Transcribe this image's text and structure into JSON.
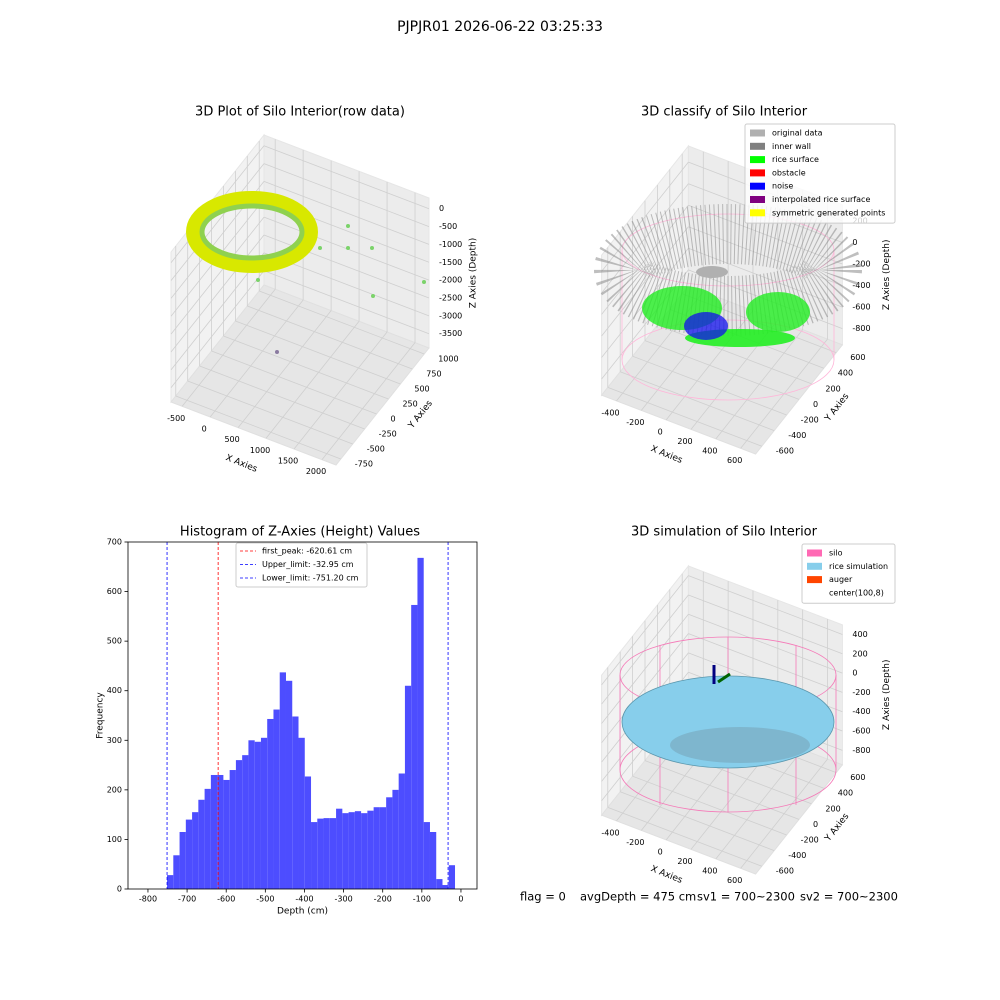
{
  "suptitle": "PJPJR01 2026-06-22 03:25:33",
  "footer": [
    "flag = 0",
    "avgDepth = 475 cm",
    "sv1 = 700~2300",
    "sv2 = 700~2300"
  ],
  "chart_data": [
    {
      "type": "scatter3d",
      "title": "3D Plot of Silo Interior(row data)",
      "xlabel": "X Axies",
      "ylabel": "Y Axies",
      "zlabel": "Z Axies (Depth)",
      "xlim": [
        -700,
        2250
      ],
      "ylim": [
        -850,
        1100
      ],
      "zlim": [
        -3900,
        300
      ],
      "xticks": [
        -500,
        0,
        500,
        1000,
        1500,
        2000
      ],
      "yticks": [
        -750,
        -500,
        -250,
        0,
        250,
        500,
        750,
        1000
      ],
      "zticks": [
        0,
        -500,
        -1000,
        -1500,
        -2000,
        -2500,
        -3000,
        -3500
      ]
    },
    {
      "type": "scatter3d",
      "title": "3D classify of Silo Interior",
      "xlabel": "X Axies",
      "ylabel": "Y Axies",
      "zlabel": "Z Axies (Depth)",
      "xlim": [
        -520,
        720
      ],
      "ylim": [
        -700,
        700
      ],
      "zlim": [
        -950,
        350
      ],
      "xticks": [
        -400,
        -200,
        0,
        200,
        400,
        600
      ],
      "yticks": [
        -600,
        -400,
        -200,
        0,
        200,
        400,
        600
      ],
      "zticks": [
        200,
        0,
        -200,
        -400,
        -600,
        -800
      ],
      "legend": [
        {
          "name": "original data",
          "color": "#b0b0b0"
        },
        {
          "name": "inner wall",
          "color": "#808080"
        },
        {
          "name": "rice surface",
          "color": "#00ff00"
        },
        {
          "name": "obstacle",
          "color": "#ff0000"
        },
        {
          "name": "noise",
          "color": "#0000ff"
        },
        {
          "name": "interpolated rice surface",
          "color": "#800080"
        },
        {
          "name": "symmetric generated points",
          "color": "#ffff00"
        }
      ]
    },
    {
      "type": "histogram",
      "title": "Histogram of Z-Axies (Height) Values",
      "xlabel": "Depth (cm)",
      "ylabel": "Frequency",
      "color": "#4d4dff",
      "xlim": [
        -851,
        41
      ],
      "ylim": [
        0,
        700
      ],
      "xticks": [
        -800,
        -700,
        -600,
        -500,
        -400,
        -300,
        -200,
        -100,
        0
      ],
      "yticks": [
        0,
        100,
        200,
        300,
        400,
        500,
        600,
        700
      ],
      "bins": [
        -751.2,
        -735.2,
        -719.2,
        -703.2,
        -687.2,
        -671.2,
        -655.2,
        -639.2,
        -623.2,
        -607.2,
        -591.2,
        -575.2,
        -559.2,
        -543.2,
        -527.2,
        -511.2,
        -495.2,
        -479.2,
        -463.2,
        -447.2,
        -431.2,
        -415.2,
        -399.2,
        -383.2,
        -367.2,
        -351.2,
        -335.2,
        -319.2,
        -303.2,
        -287.2,
        -271.2,
        -255.2,
        -239.2,
        -223.2,
        -207.2,
        -191.2,
        -175.2,
        -159.2,
        -143.2,
        -127.2,
        -111.2,
        -95.2,
        -79.2,
        -63.2,
        -47.2,
        -31.2,
        -15.2,
        0.8
      ],
      "values": [
        28,
        68,
        115,
        140,
        155,
        180,
        202,
        230,
        230,
        220,
        240,
        260,
        270,
        300,
        297,
        305,
        343,
        362,
        437,
        420,
        348,
        305,
        227,
        135,
        142,
        143,
        143,
        162,
        153,
        155,
        157,
        153,
        158,
        165,
        165,
        185,
        200,
        233,
        410,
        573,
        668,
        135,
        115,
        20,
        8,
        48,
        0
      ],
      "vlines": [
        {
          "label": "first_peak: -620.61 cm",
          "value": -620.61,
          "color": "#ff0000"
        },
        {
          "label": "Upper_limit: -32.95 cm",
          "value": -32.95,
          "color": "#0000ff"
        },
        {
          "label": "Lower_limit: -751.20 cm",
          "value": -751.2,
          "color": "#0000ff"
        }
      ]
    },
    {
      "type": "surface3d",
      "title": "3D simulation of Silo Interior",
      "xlabel": "X Axies",
      "ylabel": "Y Axies",
      "zlabel": "Z Axies (Depth)",
      "xlim": [
        -520,
        720
      ],
      "ylim": [
        -700,
        700
      ],
      "zlim": [
        -950,
        500
      ],
      "xticks": [
        -400,
        -200,
        0,
        200,
        400,
        600
      ],
      "yticks": [
        -600,
        -400,
        -200,
        0,
        200,
        400,
        600
      ],
      "zticks": [
        400,
        200,
        0,
        -200,
        -400,
        -600,
        -800
      ],
      "legend": [
        {
          "name": "silo",
          "color": "#ff69b4"
        },
        {
          "name": "rice simulation",
          "color": "#87ceeb"
        },
        {
          "name": "auger",
          "color": "#ff4500"
        },
        {
          "name": "center(100,8)",
          "color": "#ffffff"
        }
      ]
    }
  ]
}
